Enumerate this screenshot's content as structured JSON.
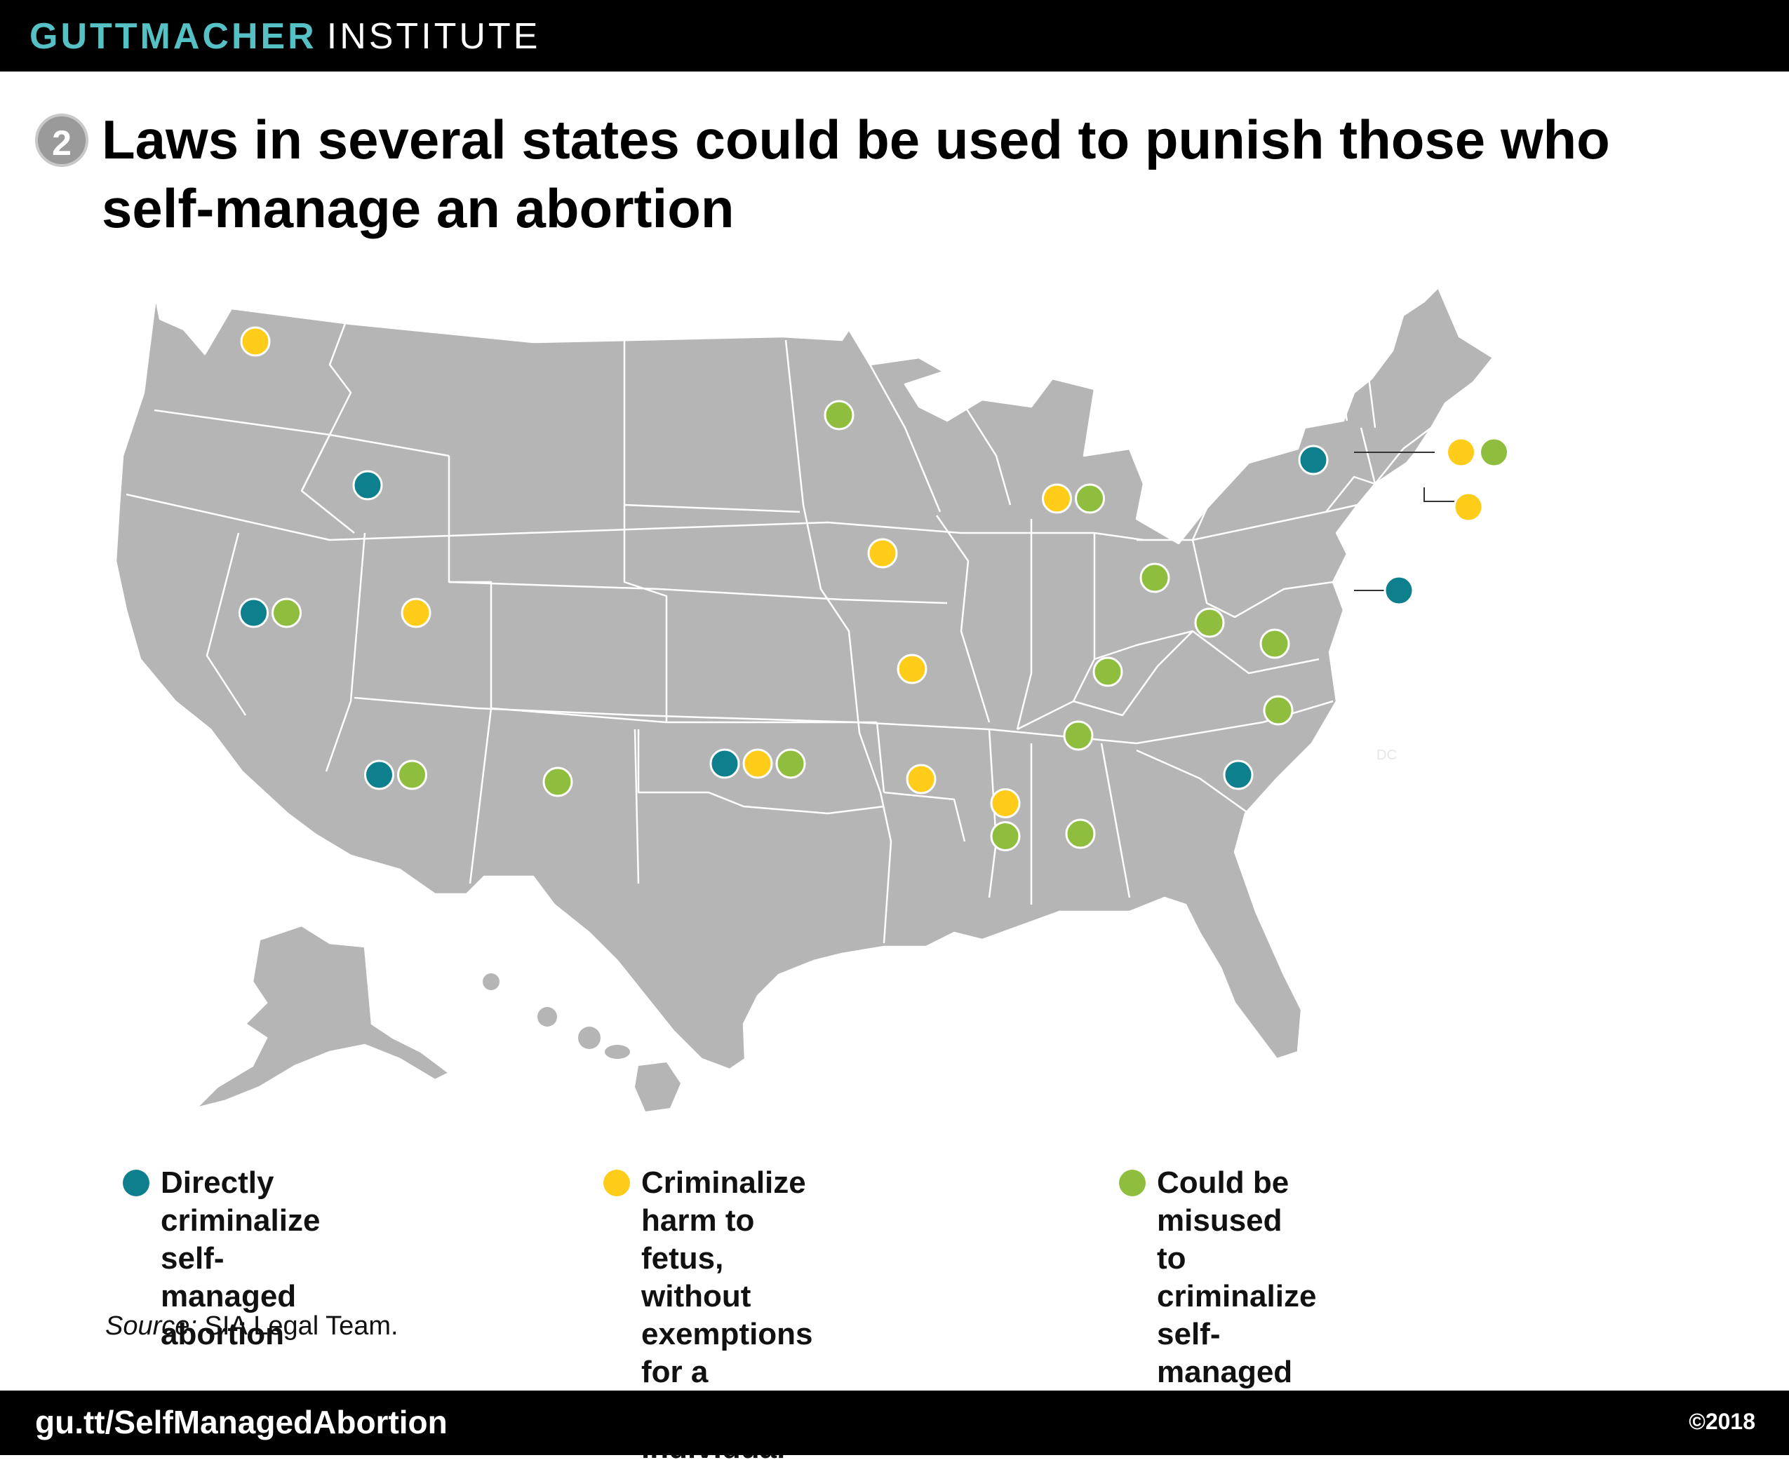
{
  "header": {
    "brand_bold": "GUTTMACHER",
    "brand_light": "INSTITUTE"
  },
  "figure_number": "2",
  "title": "Laws in several states could be used to punish those who self-manage an abortion",
  "colors": {
    "direct": "#0e7f8c",
    "fetus": "#ffcc1a",
    "misuse": "#8fbe3f",
    "land": "#b5b5b5",
    "border": "#ffffff"
  },
  "map": {
    "dc_label": "DC"
  },
  "legend": [
    {
      "key": "direct",
      "label": "Directly criminalize\nself-managed abortion"
    },
    {
      "key": "fetus",
      "label": "Criminalize harm to\nfetus, without exemptions\nfor a pregnant individual"
    },
    {
      "key": "misuse",
      "label": "Could be misused to\ncriminalize self-managed\nabortion"
    }
  ],
  "states": [
    {
      "state": "WA",
      "categories": [
        "fetus"
      ]
    },
    {
      "state": "ID",
      "categories": [
        "direct"
      ]
    },
    {
      "state": "NV",
      "categories": [
        "direct",
        "misuse"
      ]
    },
    {
      "state": "UT",
      "categories": [
        "fetus"
      ]
    },
    {
      "state": "AZ",
      "categories": [
        "direct",
        "misuse"
      ]
    },
    {
      "state": "NM",
      "categories": [
        "misuse"
      ]
    },
    {
      "state": "MN",
      "categories": [
        "misuse"
      ]
    },
    {
      "state": "IA",
      "categories": [
        "fetus"
      ]
    },
    {
      "state": "MO",
      "categories": [
        "fetus"
      ]
    },
    {
      "state": "OK",
      "categories": [
        "direct",
        "fetus",
        "misuse"
      ]
    },
    {
      "state": "AR",
      "categories": [
        "fetus"
      ]
    },
    {
      "state": "MS",
      "categories": [
        "fetus",
        "misuse"
      ]
    },
    {
      "state": "AL",
      "categories": [
        "misuse"
      ]
    },
    {
      "state": "TN",
      "categories": [
        "misuse"
      ]
    },
    {
      "state": "KY",
      "categories": [
        "misuse"
      ]
    },
    {
      "state": "MI",
      "categories": [
        "fetus",
        "misuse"
      ]
    },
    {
      "state": "OH",
      "categories": [
        "misuse"
      ]
    },
    {
      "state": "WV",
      "categories": [
        "misuse"
      ]
    },
    {
      "state": "VA",
      "categories": [
        "misuse"
      ]
    },
    {
      "state": "NC",
      "categories": [
        "misuse"
      ]
    },
    {
      "state": "SC",
      "categories": [
        "direct"
      ]
    },
    {
      "state": "NY",
      "categories": [
        "direct"
      ]
    },
    {
      "state": "DE",
      "categories": [
        "direct"
      ]
    },
    {
      "state": "MA",
      "categories": [
        "fetus",
        "misuse"
      ]
    },
    {
      "state": "RI",
      "categories": [
        "fetus"
      ]
    }
  ],
  "source": {
    "label": "Source:",
    "text": "SIA Legal Team."
  },
  "footer": {
    "url": "gu.tt/SelfManagedAbortion",
    "copyright": "©2018"
  }
}
